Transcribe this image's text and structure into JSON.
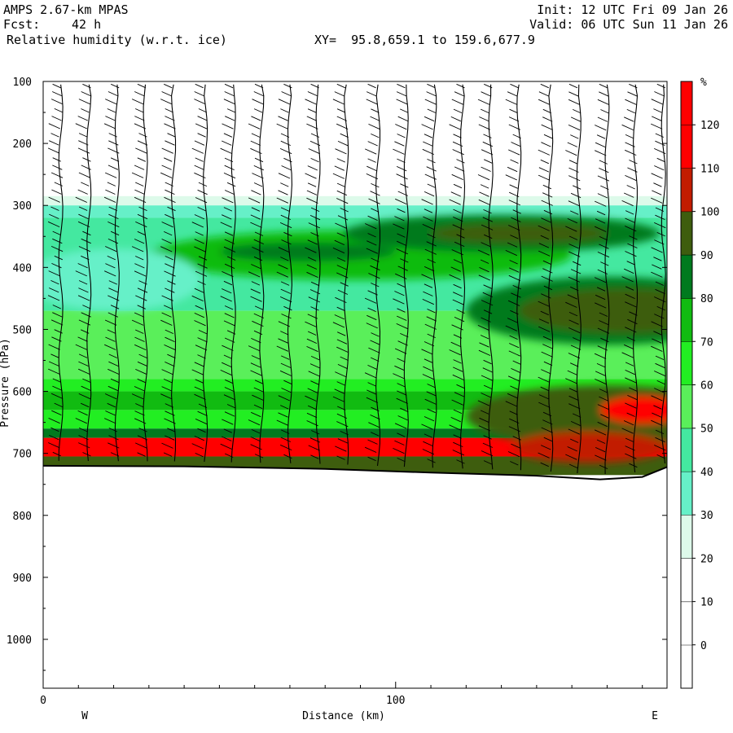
{
  "header": {
    "model": "AMPS 2.67-km MPAS",
    "forecast_label": "Fcst:",
    "forecast_hours": "42 h",
    "init": "Init: 12 UTC Fri 09 Jan 26",
    "valid": "Valid: 06 UTC Sun 11 Jan 26",
    "field": "Relative humidity (w.r.t. ice)",
    "xy_range": "XY=  95.8,659.1 to 159.6,677.9"
  },
  "chart_data": {
    "type": "heatmap",
    "title": "Relative humidity (w.r.t. ice)",
    "xlabel": "Distance (km)",
    "ylabel": "Pressure (hPa)",
    "xlim": [
      0,
      177
    ],
    "ylim": [
      1050,
      100
    ],
    "x_ticks": [
      0,
      100
    ],
    "x_tick_labels": [
      "0",
      "100"
    ],
    "y_ticks": [
      100,
      200,
      300,
      400,
      500,
      600,
      700,
      800,
      900,
      1000
    ],
    "y_tick_labels": [
      "100",
      "200",
      "300",
      "400",
      "500",
      "600",
      "700",
      "800",
      "900",
      "1000"
    ],
    "direction_labels": [
      "W",
      "E"
    ],
    "colorbar": {
      "unit": "%",
      "levels": [
        0,
        10,
        20,
        30,
        40,
        50,
        60,
        70,
        80,
        90,
        100,
        110,
        120
      ],
      "colors": [
        "#ffffff",
        "#ffffff",
        "#ffffff",
        "#ddfaea",
        "#66f0c8",
        "#44e8a0",
        "#5aef5a",
        "#22ee22",
        "#11bb11",
        "#007a1e",
        "#3e5d0e",
        "#c21c00",
        "#ff0000"
      ]
    },
    "terrain_surface_hpa": [
      {
        "x": 0,
        "p": 720
      },
      {
        "x": 40,
        "p": 721
      },
      {
        "x": 80,
        "p": 725
      },
      {
        "x": 110,
        "p": 731
      },
      {
        "x": 140,
        "p": 736
      },
      {
        "x": 158,
        "p": 742
      },
      {
        "x": 170,
        "p": 738
      },
      {
        "x": 177,
        "p": 722
      }
    ],
    "rh_bands": [
      {
        "p_top": 285,
        "p_bottom": 300,
        "rh": 30
      },
      {
        "p_top": 300,
        "p_bottom": 320,
        "rh": 40
      },
      {
        "p_top": 320,
        "p_bottom": 470,
        "rh": 55
      },
      {
        "p_top": 470,
        "p_bottom": 580,
        "rh": 60
      },
      {
        "p_top": 580,
        "p_bottom": 600,
        "rh": 70
      },
      {
        "p_top": 600,
        "p_bottom": 630,
        "rh": 80
      },
      {
        "p_top": 630,
        "p_bottom": 660,
        "rh": 70
      },
      {
        "p_top": 660,
        "p_bottom": 675,
        "rh": 90
      },
      {
        "p_top": 675,
        "p_bottom": 705,
        "rh": 120
      },
      {
        "p_top": 705,
        "p_bottom": 735,
        "rh": 100
      }
    ],
    "rh_features": [
      {
        "x": 90,
        "p": 380,
        "rx": 60,
        "rp": 40,
        "rh": 80
      },
      {
        "x": 75,
        "p": 375,
        "rx": 25,
        "rp": 15,
        "rh": 90
      },
      {
        "x": 130,
        "p": 345,
        "rx": 45,
        "rp": 30,
        "rh": 90
      },
      {
        "x": 135,
        "p": 345,
        "rx": 25,
        "rp": 15,
        "rh": 100
      },
      {
        "x": 160,
        "p": 470,
        "rx": 40,
        "rp": 55,
        "rh": 90
      },
      {
        "x": 165,
        "p": 470,
        "rx": 30,
        "rp": 35,
        "rh": 100
      },
      {
        "x": 20,
        "p": 420,
        "rx": 25,
        "rp": 50,
        "rh": 40
      },
      {
        "x": 160,
        "p": 640,
        "rx": 40,
        "rp": 50,
        "rh": 100
      },
      {
        "x": 170,
        "p": 630,
        "rx": 12,
        "rp": 22,
        "rh": 120
      },
      {
        "x": 155,
        "p": 690,
        "rx": 22,
        "rp": 25,
        "rh": 110
      }
    ],
    "wind_barb_columns_km": [
      5,
      13,
      21,
      29,
      37,
      46,
      54,
      62,
      70,
      78,
      86,
      95,
      103,
      111,
      119,
      127,
      135,
      144,
      152,
      160,
      168,
      176
    ]
  }
}
